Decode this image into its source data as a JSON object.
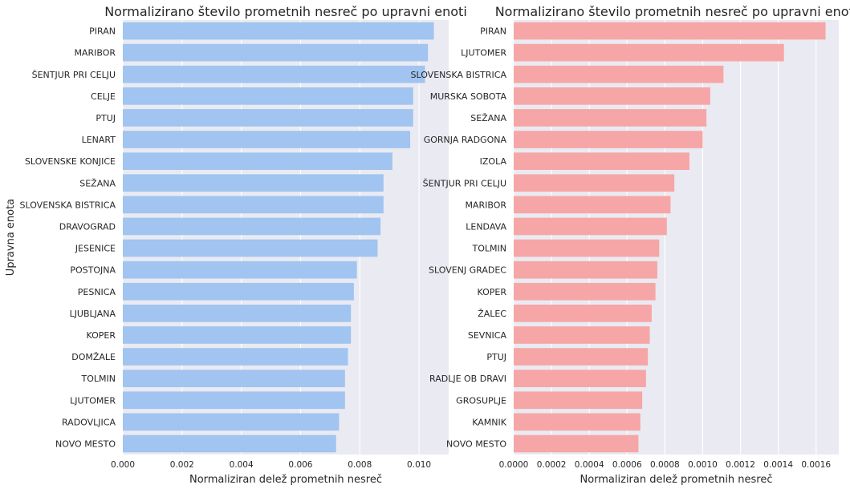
{
  "chart_data": [
    {
      "type": "bar",
      "orientation": "horizontal",
      "title": "Normalizirano število prometnih nesreč po upravni enoti",
      "xlabel": "Normaliziran delež prometnih nesreč",
      "ylabel": "Upravna enota",
      "xlim": [
        0,
        0.011
      ],
      "xticks": [
        0.0,
        0.002,
        0.004,
        0.006,
        0.008,
        0.01
      ],
      "xtick_labels": [
        "0.000",
        "0.002",
        "0.004",
        "0.006",
        "0.008",
        "0.010"
      ],
      "grid": true,
      "color": "#a1c4f0",
      "categories": [
        "PIRAN",
        "MARIBOR",
        "ŠENTJUR PRI CELJU",
        "CELJE",
        "PTUJ",
        "LENART",
        "SLOVENSKE KONJICE",
        "SEŽANA",
        "SLOVENSKA BISTRICA",
        "DRAVOGRAD",
        "JESENICE",
        "POSTOJNA",
        "PESNICA",
        "LJUBLJANA",
        "KOPER",
        "DOMŽALE",
        "TOLMIN",
        "LJUTOMER",
        "RADOVLJICA",
        "NOVO MESTO"
      ],
      "values": [
        0.0105,
        0.0103,
        0.0102,
        0.0098,
        0.0098,
        0.0097,
        0.0091,
        0.0088,
        0.0088,
        0.0087,
        0.0086,
        0.0079,
        0.0078,
        0.0077,
        0.0077,
        0.0076,
        0.0075,
        0.0075,
        0.0073,
        0.0072
      ]
    },
    {
      "type": "bar",
      "orientation": "horizontal",
      "title": "Normalizirano število prometnih nesreč po upravni enoti",
      "xlabel": "Normaliziran delež prometnih nesreč",
      "ylabel": "",
      "xlim": [
        0,
        0.00172
      ],
      "xticks": [
        0.0,
        0.0002,
        0.0004,
        0.0006,
        0.0008,
        0.001,
        0.0012,
        0.0014,
        0.0016
      ],
      "xtick_labels": [
        "0.0000",
        "0.0002",
        "0.0004",
        "0.0006",
        "0.0008",
        "0.0010",
        "0.0012",
        "0.0014",
        "0.0016"
      ],
      "grid": true,
      "color": "#f6a6a6",
      "categories": [
        "PIRAN",
        "LJUTOMER",
        "SLOVENSKA BISTRICA",
        "MURSKA SOBOTA",
        "SEŽANA",
        "GORNJA RADGONA",
        "IZOLA",
        "ŠENTJUR PRI CELJU",
        "MARIBOR",
        "LENDAVA",
        "TOLMIN",
        "SLOVENJ GRADEC",
        "KOPER",
        "ŽALEC",
        "SEVNICA",
        "PTUJ",
        "RADLJE OB DRAVI",
        "GROSUPLJE",
        "KAMNIK",
        "NOVO MESTO"
      ],
      "values": [
        0.00165,
        0.00143,
        0.00111,
        0.00104,
        0.00102,
        0.001,
        0.00093,
        0.00085,
        0.00083,
        0.00081,
        0.00077,
        0.00076,
        0.00075,
        0.00073,
        0.00072,
        0.00071,
        0.0007,
        0.00068,
        0.00067,
        0.00066
      ]
    }
  ]
}
